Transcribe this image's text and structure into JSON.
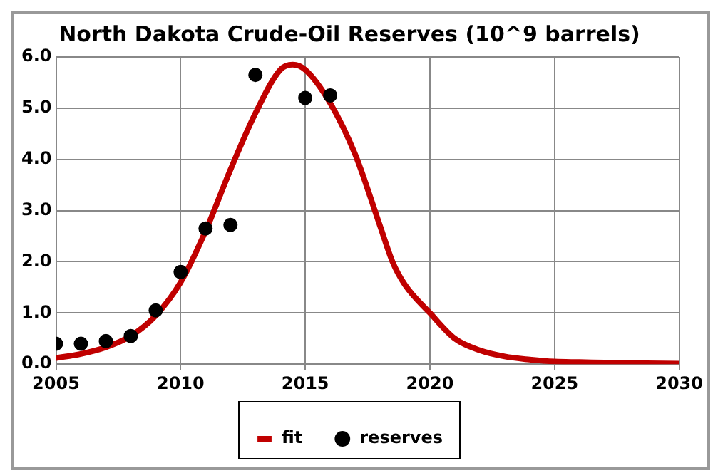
{
  "chart_data": {
    "type": "line",
    "title": "North Dakota Crude-Oil Reserves (10^9 barrels)",
    "xlim": [
      2005,
      2030
    ],
    "xticks": [
      2005,
      2010,
      2015,
      2020,
      2025,
      2030
    ],
    "ylim": [
      0,
      6
    ],
    "yticks": [
      {
        "value": 0,
        "label": "0.0"
      },
      {
        "value": 1,
        "label": "1.0"
      },
      {
        "value": 2,
        "label": "2.0"
      },
      {
        "value": 3,
        "label": "3.0"
      },
      {
        "value": 4,
        "label": "4.0"
      },
      {
        "value": 5,
        "label": "5.0"
      },
      {
        "value": 6,
        "label": "6.0"
      }
    ],
    "grid": true,
    "legend": "bottom",
    "series": [
      {
        "name": "fit",
        "type": "line",
        "color": "#c00000",
        "marker": "none",
        "line_style": "solid",
        "x": [
          2005,
          2006,
          2007,
          2008,
          2009,
          2010,
          2011,
          2012,
          2013,
          2014,
          2014.5,
          2015,
          2016,
          2017,
          2018,
          2018.5,
          2019,
          2020,
          2021,
          2022,
          2023,
          2024,
          2025,
          2026,
          2027,
          2028,
          2030
        ],
        "values": [
          0.12,
          0.2,
          0.33,
          0.55,
          0.95,
          1.6,
          2.6,
          3.8,
          4.9,
          5.75,
          5.85,
          5.75,
          5.1,
          4.1,
          2.7,
          2.0,
          1.55,
          1.0,
          0.5,
          0.27,
          0.15,
          0.09,
          0.05,
          0.04,
          0.03,
          0.02,
          0.01
        ]
      },
      {
        "name": "reserves",
        "type": "scatter",
        "color": "#000000",
        "marker": "circle",
        "x": [
          2005,
          2006,
          2007,
          2008,
          2009,
          2010,
          2011,
          2012,
          2013,
          2015,
          2016
        ],
        "values": [
          0.4,
          0.4,
          0.45,
          0.55,
          1.05,
          1.8,
          2.65,
          2.72,
          5.65,
          5.2,
          5.25
        ]
      }
    ]
  }
}
